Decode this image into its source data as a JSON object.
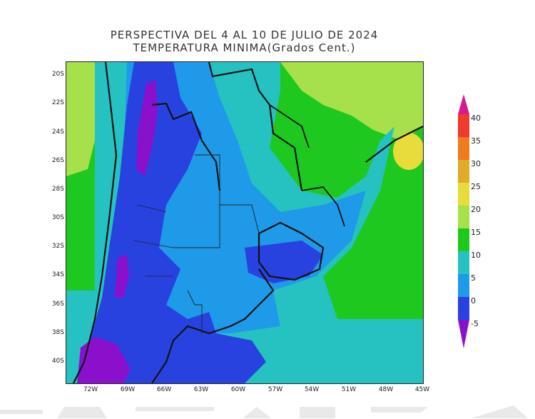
{
  "title": {
    "line1": "PERSPECTIVA DEL 4 AL 10 DE JULIO DE 2024",
    "line2": "TEMPERATURA MINIMA(Grados Cent.)"
  },
  "map": {
    "lat_labels": [
      "20S",
      "22S",
      "24S",
      "26S",
      "28S",
      "30S",
      "32S",
      "34S",
      "36S",
      "38S",
      "40S"
    ],
    "lon_labels": [
      "72W",
      "69W",
      "66W",
      "63W",
      "60W",
      "57W",
      "54W",
      "51W",
      "48W",
      "45W"
    ],
    "lat_range": [
      -41,
      -19
    ],
    "lon_range": [
      -74,
      -45
    ]
  },
  "colorbar": {
    "labels": [
      "40",
      "35",
      "30",
      "25",
      "20",
      "15",
      "10",
      "5",
      "0",
      "-5"
    ],
    "colors": [
      "#d81a8c",
      "#f03a2c",
      "#f07a1e",
      "#e0aa2a",
      "#e8dc3a",
      "#a6e04a",
      "#1ec81e",
      "#26c2c2",
      "#1e9ae8",
      "#2842e0",
      "#8a10cc"
    ],
    "color_meaning": {
      "min_below_-5": "#8a10cc",
      "-5_to_0": "#2842e0",
      "0_to_5": "#1e9ae8",
      "5_to_10": "#26c2c2",
      "10_to_15": "#1ec81e",
      "15_to_20": "#a6e04a",
      "20_to_25": "#e8dc3a",
      "25_to_30": "#e0aa2a",
      "30_to_35": "#f07a1e",
      "35_to_40": "#f03a2c",
      "above_40": "#d81a8c"
    }
  }
}
